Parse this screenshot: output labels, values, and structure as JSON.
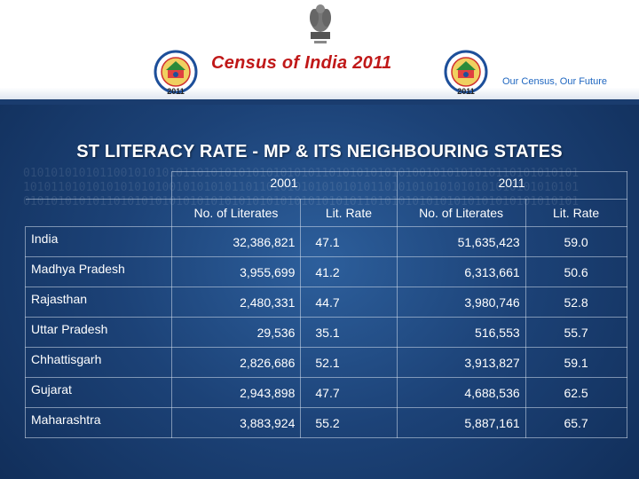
{
  "header": {
    "title": "Census of India  2011",
    "tagline": "Our Census,  Our Future",
    "logo_year_left": "2011",
    "logo_year_right": "2011"
  },
  "slide_title": "ST LITERACY RATE - MP & ITS NEIGHBOURING STATES",
  "table": {
    "year_headers": [
      "2001",
      "2011"
    ],
    "col_headers": [
      "No. of Literates",
      "Lit. Rate",
      "No. of Literates",
      "Lit. Rate"
    ],
    "rows": [
      {
        "state": "India",
        "lit_2001": "32,386,821",
        "rate_2001": "47.1",
        "lit_2011": "51,635,423",
        "rate_2011": "59.0"
      },
      {
        "state": "Madhya Pradesh",
        "lit_2001": "3,955,699",
        "rate_2001": "41.2",
        "lit_2011": "6,313,661",
        "rate_2011": "50.6"
      },
      {
        "state": "Rajasthan",
        "lit_2001": "2,480,331",
        "rate_2001": "44.7",
        "lit_2011": "3,980,746",
        "rate_2011": "52.8"
      },
      {
        "state": "Uttar Pradesh",
        "lit_2001": "29,536",
        "rate_2001": "35.1",
        "lit_2011": "516,553",
        "rate_2011": "55.7"
      },
      {
        "state": "Chhattisgarh",
        "lit_2001": "2,826,686",
        "rate_2001": "52.1",
        "lit_2011": "3,913,827",
        "rate_2011": "59.1"
      },
      {
        "state": "Gujarat",
        "lit_2001": "2,943,898",
        "rate_2001": "47.7",
        "lit_2011": "4,688,536",
        "rate_2011": "62.5"
      },
      {
        "state": "Maharashtra",
        "lit_2001": "3,883,924",
        "rate_2001": "55.2",
        "lit_2011": "5,887,161",
        "rate_2011": "65.7"
      }
    ]
  }
}
